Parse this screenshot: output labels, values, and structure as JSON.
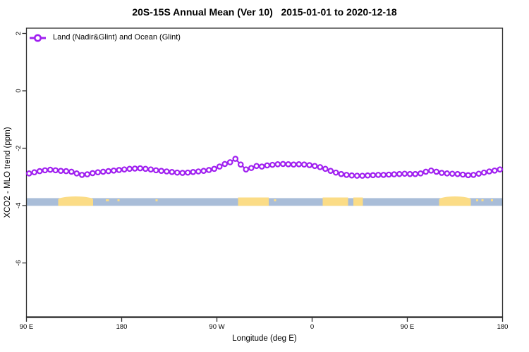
{
  "chart_data": {
    "type": "line",
    "title": "20S-15S Annual Mean (Ver 10)   2015-01-01 to 2020-12-18",
    "xlabel": "Longitude (deg E)",
    "ylabel": "XCO2 - MLO trend (ppm)",
    "legend": [
      "Land (Nadir&Glint) and Ocean (Glint)"
    ],
    "legend_position": "top-left",
    "grid": false,
    "x_axis": {
      "note": "longitude axis wraps eastward from 90E over 450 degrees",
      "span_deg": 450,
      "tick_positions_deg": [
        0,
        90,
        180,
        270,
        360,
        450
      ],
      "tick_labels": [
        "90 E",
        "180",
        "90 W",
        "0",
        "90 E",
        "180"
      ]
    },
    "y_axis": {
      "ticks": [
        2,
        0,
        -2,
        -4,
        -6
      ],
      "tick_labels": [
        "2",
        "0",
        "-2",
        "-4",
        "-6"
      ],
      "ylim": [
        -7.9,
        2.2
      ]
    },
    "series": [
      {
        "name": "Land (Nadir&Glint) and Ocean (Glint)",
        "color": "#A020F0",
        "marker": "open-circle",
        "x_start_deg": 2.5,
        "x_step_deg": 5,
        "values": [
          -2.88,
          -2.84,
          -2.8,
          -2.77,
          -2.75,
          -2.77,
          -2.79,
          -2.8,
          -2.82,
          -2.88,
          -2.93,
          -2.91,
          -2.87,
          -2.84,
          -2.82,
          -2.8,
          -2.78,
          -2.76,
          -2.74,
          -2.72,
          -2.71,
          -2.7,
          -2.72,
          -2.74,
          -2.77,
          -2.79,
          -2.81,
          -2.83,
          -2.85,
          -2.86,
          -2.85,
          -2.83,
          -2.81,
          -2.79,
          -2.76,
          -2.72,
          -2.64,
          -2.55,
          -2.49,
          -2.37,
          -2.57,
          -2.74,
          -2.69,
          -2.62,
          -2.64,
          -2.6,
          -2.58,
          -2.56,
          -2.55,
          -2.56,
          -2.57,
          -2.56,
          -2.57,
          -2.59,
          -2.62,
          -2.66,
          -2.72,
          -2.79,
          -2.85,
          -2.9,
          -2.93,
          -2.95,
          -2.96,
          -2.96,
          -2.95,
          -2.94,
          -2.93,
          -2.93,
          -2.92,
          -2.91,
          -2.9,
          -2.89,
          -2.9,
          -2.9,
          -2.88,
          -2.82,
          -2.78,
          -2.82,
          -2.86,
          -2.88,
          -2.89,
          -2.9,
          -2.92,
          -2.94,
          -2.93,
          -2.89,
          -2.85,
          -2.81,
          -2.78,
          -2.74
        ]
      }
    ],
    "map_strip": {
      "description": "land/ocean strip drawn across plot",
      "ocean_color": "#A9BDD8",
      "land_color": "#FBDC86",
      "y_top": -3.74,
      "y_bottom": -4.01,
      "land_patches_deg": [
        {
          "from": 30,
          "to": 63,
          "shape": "dome"
        },
        {
          "from": 75,
          "to": 78,
          "shape": "speck"
        },
        {
          "from": 86,
          "to": 88,
          "shape": "speck"
        },
        {
          "from": 122,
          "to": 124,
          "shape": "speck"
        },
        {
          "from": 200,
          "to": 229,
          "shape": "flat"
        },
        {
          "from": 234,
          "to": 236,
          "shape": "speck"
        },
        {
          "from": 280,
          "to": 304,
          "shape": "flat"
        },
        {
          "from": 309,
          "to": 318,
          "shape": "flat"
        },
        {
          "from": 390,
          "to": 420,
          "shape": "dome"
        },
        {
          "from": 425,
          "to": 427,
          "shape": "speck"
        },
        {
          "from": 430,
          "to": 432,
          "shape": "speck"
        },
        {
          "from": 439,
          "to": 441,
          "shape": "speck"
        }
      ]
    },
    "axis_color": "#2f2f2f",
    "text_color": "#000000"
  }
}
